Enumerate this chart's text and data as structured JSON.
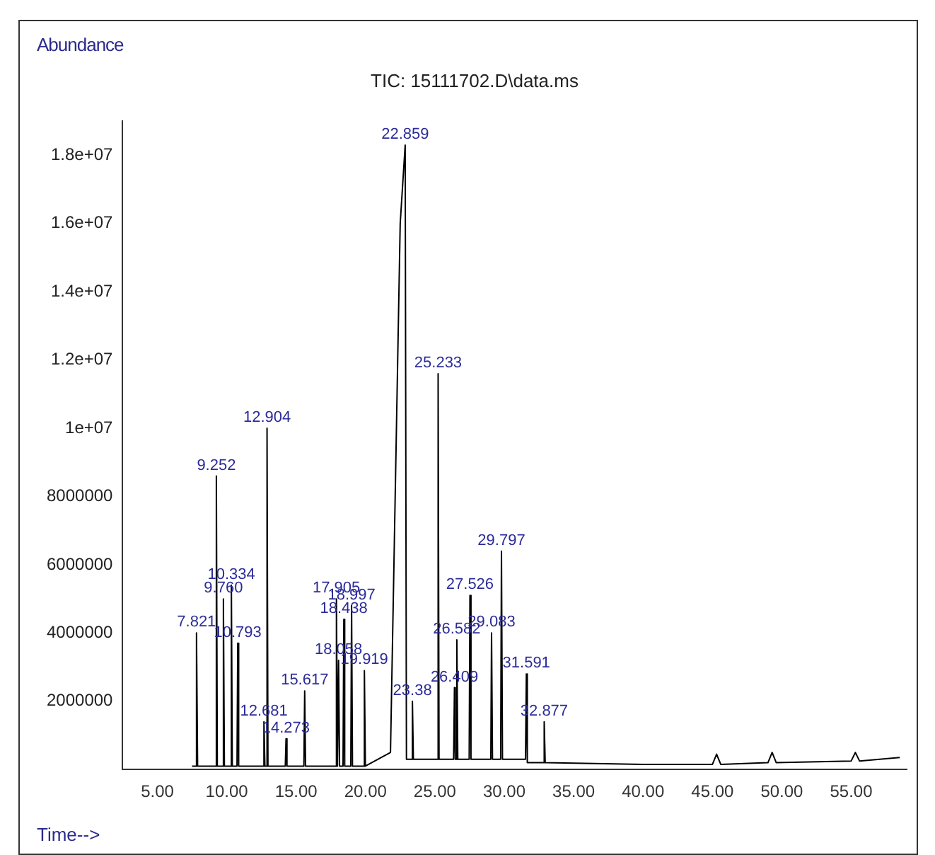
{
  "chart_data": {
    "type": "line",
    "title": "TIC: 15111702.D\\data.ms",
    "xlabel": "Time-->",
    "ylabel": "Abundance",
    "xlim": [
      2.5,
      59
    ],
    "xticks": [
      {
        "value": 5,
        "label": "5.00"
      },
      {
        "value": 10,
        "label": "10.00"
      },
      {
        "value": 15,
        "label": "15.00"
      },
      {
        "value": 20,
        "label": "20.00"
      },
      {
        "value": 25,
        "label": "25.00"
      },
      {
        "value": 30,
        "label": "30.00"
      },
      {
        "value": 35,
        "label": "35.00"
      },
      {
        "value": 40,
        "label": "40.00"
      },
      {
        "value": 45,
        "label": "45.00"
      },
      {
        "value": 50,
        "label": "50.00"
      },
      {
        "value": 55,
        "label": "55.00"
      }
    ],
    "ylim": [
      0,
      19000000
    ],
    "yticks": [
      2000000,
      4000000,
      6000000,
      8000000,
      {
        "value": 10000000,
        "label": "1e+07"
      },
      {
        "value": 12000000,
        "label": "1.2e+07"
      },
      {
        "value": 14000000,
        "label": "1.4e+07"
      },
      {
        "value": 16000000,
        "label": "1.6e+07"
      },
      {
        "value": 18000000,
        "label": "1.8e+07"
      }
    ],
    "grid": false,
    "legend": false,
    "marker": "none",
    "line_style": "solid",
    "series": [
      {
        "color": "#000000",
        "x": [
          7.5,
          7.77,
          7.821,
          7.9,
          9.2,
          9.252,
          9.32,
          9.7,
          9.76,
          9.83,
          10.28,
          10.334,
          10.4,
          10.74,
          10.793,
          10.86,
          12.63,
          12.681,
          12.75,
          12.85,
          12.904,
          12.97,
          14.22,
          14.273,
          14.34,
          15.56,
          15.617,
          15.68,
          17.85,
          17.905,
          17.98,
          18.058,
          18.13,
          18.38,
          18.438,
          18.5,
          18.94,
          18.997,
          19.06,
          19.86,
          19.919,
          19.99,
          21.8,
          22.5,
          22.859,
          22.95,
          23.33,
          23.38,
          23.45,
          25.18,
          25.233,
          25.3,
          26.35,
          26.409,
          26.47,
          26.53,
          26.582,
          26.65,
          27.47,
          27.526,
          27.6,
          29.03,
          29.083,
          29.15,
          29.74,
          29.797,
          29.87,
          31.53,
          31.591,
          31.66,
          32.82,
          32.877,
          32.95,
          40,
          45,
          45.3,
          45.6,
          49,
          49.3,
          49.6,
          55,
          55.3,
          55.6,
          58.5
        ],
        "values": [
          100000,
          100000,
          4000000,
          100000,
          100000,
          8600000,
          100000,
          100000,
          5000000,
          100000,
          100000,
          5400000,
          100000,
          100000,
          3700000,
          100000,
          100000,
          1400000,
          100000,
          100000,
          10000000,
          100000,
          100000,
          900000,
          100000,
          100000,
          2300000,
          100000,
          100000,
          5000000,
          100000,
          3200000,
          100000,
          100000,
          4400000,
          100000,
          100000,
          4800000,
          100000,
          100000,
          2900000,
          100000,
          500000,
          16000000,
          18300000,
          300000,
          300000,
          2000000,
          300000,
          300000,
          11600000,
          300000,
          300000,
          2400000,
          300000,
          300000,
          3800000,
          300000,
          300000,
          5100000,
          300000,
          300000,
          4000000,
          300000,
          300000,
          6400000,
          300000,
          300000,
          2800000,
          200000,
          200000,
          1400000,
          200000,
          150000,
          150000,
          450000,
          150000,
          200000,
          500000,
          200000,
          250000,
          500000,
          250000,
          350000
        ]
      }
    ],
    "annotations": [
      {
        "text": "7.821",
        "x": 7.821,
        "y": 4000000
      },
      {
        "text": "9.252",
        "x": 9.252,
        "y": 8600000
      },
      {
        "text": "9.760",
        "x": 9.76,
        "y": 5000000
      },
      {
        "text": "10.334",
        "x": 10.334,
        "y": 5400000
      },
      {
        "text": "10.793",
        "x": 10.793,
        "y": 3700000
      },
      {
        "text": "12.681",
        "x": 12.681,
        "y": 1400000
      },
      {
        "text": "12.904",
        "x": 12.904,
        "y": 10000000
      },
      {
        "text": "14.273",
        "x": 14.273,
        "y": 900000
      },
      {
        "text": "15.617",
        "x": 15.617,
        "y": 2300000
      },
      {
        "text": "17.905",
        "x": 17.905,
        "y": 5000000
      },
      {
        "text": "18.058",
        "x": 18.058,
        "y": 3200000
      },
      {
        "text": "18.438",
        "x": 18.438,
        "y": 4400000
      },
      {
        "text": "18.997",
        "x": 18.997,
        "y": 4800000
      },
      {
        "text": "19.919",
        "x": 19.919,
        "y": 2900000
      },
      {
        "text": "22.859",
        "x": 22.859,
        "y": 18300000
      },
      {
        "text": "23.38",
        "x": 23.38,
        "y": 2000000
      },
      {
        "text": "25.233",
        "x": 25.233,
        "y": 11600000
      },
      {
        "text": "26.409",
        "x": 26.409,
        "y": 2400000
      },
      {
        "text": "26.582",
        "x": 26.582,
        "y": 3800000
      },
      {
        "text": "27.526",
        "x": 27.526,
        "y": 5100000
      },
      {
        "text": "29.083",
        "x": 29.083,
        "y": 4000000
      },
      {
        "text": "29.797",
        "x": 29.797,
        "y": 6400000
      },
      {
        "text": "31.591",
        "x": 31.591,
        "y": 2800000
      },
      {
        "text": "32.877",
        "x": 32.877,
        "y": 1400000
      }
    ]
  }
}
